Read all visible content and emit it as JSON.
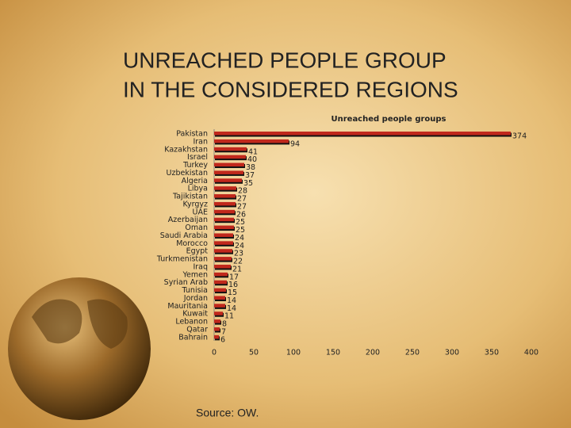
{
  "slide": {
    "title": [
      "UNREACHED PEOPLE GROUP",
      "IN THE CONSIDERED REGIONS"
    ],
    "source": "Source: OW."
  },
  "chart_data": {
    "type": "hbar",
    "title": "Unreached people groups",
    "categories": [
      "Pakistan",
      "Iran",
      "Kazakhstan",
      "Israel",
      "Turkey",
      "Uzbekistan",
      "Algeria",
      "Libya",
      "Tajikistan",
      "Kyrgyz",
      "UAE",
      "Azerbaijan",
      "Oman",
      "Saudi Arabia",
      "Morocco",
      "Egypt",
      "Turkmenistan",
      "Iraq",
      "Yemen",
      "Syrian Arab",
      "Tunisia",
      "Jordan",
      "Mauritania",
      "Kuwait",
      "Lebanon",
      "Qatar",
      "Bahrain"
    ],
    "values": [
      374,
      94,
      41,
      40,
      38,
      37,
      35,
      28,
      27,
      27,
      26,
      25,
      25,
      24,
      24,
      23,
      22,
      21,
      17,
      16,
      15,
      14,
      14,
      11,
      8,
      7,
      6
    ],
    "color": "#c0281c",
    "xlim": [
      0,
      400
    ],
    "xticks": [
      0,
      50,
      100,
      150,
      200,
      250,
      300,
      350,
      400
    ]
  }
}
